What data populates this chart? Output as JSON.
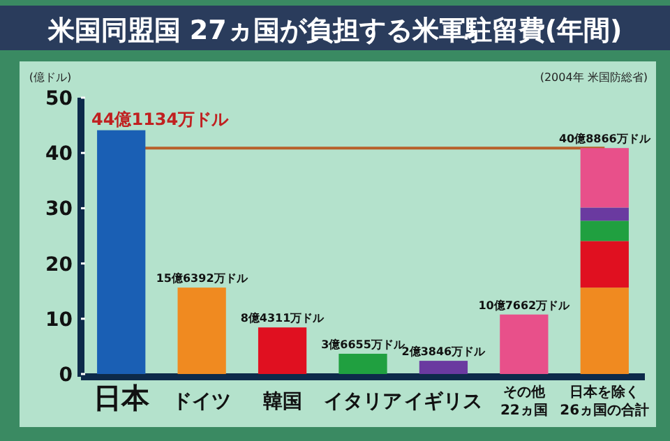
{
  "chart_data": {
    "type": "bar",
    "title": "米国同盟国 27ヵ国が負担する米軍駐留費(年間)",
    "ylabel": "(億ドル)",
    "annotations": [
      "(2004年 米国防総省)"
    ],
    "categories": [
      "日本",
      "ドイツ",
      "韓国",
      "イタリア",
      "イギリス",
      "その他\n22ヵ国",
      "日本を除く\n26ヵ国の合計"
    ],
    "stacked": true,
    "series": [
      {
        "color": "#1a5fb4",
        "values": [
          44.1134,
          null,
          null,
          null,
          null,
          null,
          null
        ]
      },
      {
        "color": "#f08a20",
        "values": [
          null,
          15.6392,
          null,
          null,
          null,
          null,
          15.6392
        ]
      },
      {
        "color": "#e01020",
        "values": [
          null,
          null,
          8.4311,
          null,
          null,
          null,
          8.4311
        ]
      },
      {
        "color": "#20a040",
        "values": [
          null,
          null,
          null,
          3.6655,
          null,
          null,
          3.6655
        ]
      },
      {
        "color": "#6a3aa0",
        "values": [
          null,
          null,
          null,
          null,
          2.3846,
          null,
          2.3846
        ]
      },
      {
        "color": "#e8508a",
        "values": [
          null,
          null,
          null,
          null,
          null,
          10.7662,
          10.7662
        ]
      }
    ],
    "totals": [
      "44億1134万ドル",
      "15億6392万ドル",
      "8億4311万ドル",
      "3億6655万ドル",
      "2億3846万ドル",
      "10億7662万ドル",
      "40億8866万ドル"
    ],
    "ref_lines": [
      {
        "axis": "y",
        "value": 40.8866,
        "color": "#b8602a"
      }
    ],
    "ylim": [
      0,
      50
    ],
    "yticks": [
      0,
      10,
      20,
      30,
      40,
      50
    ]
  }
}
